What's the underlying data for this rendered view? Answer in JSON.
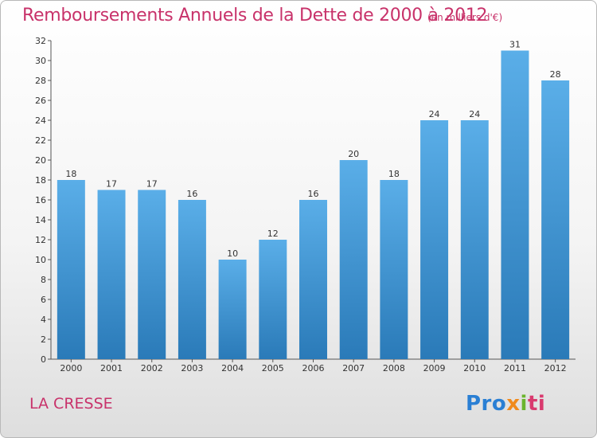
{
  "header": {
    "title": "Remboursements Annuels de la Dette de 2000 à 2012",
    "subtitle": "(en milliers d'€)"
  },
  "footer": {
    "commune": "LA CRESSE",
    "logo_parts": [
      "Pro",
      "x",
      "i",
      "ti"
    ]
  },
  "colors": {
    "title": "#c8326a",
    "bar_top": "#5aaee8",
    "bar_bottom": "#2a7ab8"
  },
  "chart_data": {
    "type": "bar",
    "title": "Remboursements Annuels de la Dette de 2000 à 2012",
    "subtitle": "(en milliers d'€)",
    "categories": [
      "2000",
      "2001",
      "2002",
      "2003",
      "2004",
      "2005",
      "2006",
      "2007",
      "2008",
      "2009",
      "2010",
      "2011",
      "2012"
    ],
    "values": [
      18,
      17,
      17,
      16,
      10,
      12,
      16,
      20,
      18,
      24,
      24,
      31,
      28
    ],
    "ylim": [
      0,
      32
    ],
    "yticks": [
      0,
      2,
      4,
      6,
      8,
      10,
      12,
      14,
      16,
      18,
      20,
      22,
      24,
      26,
      28,
      30,
      32
    ],
    "data_labels": [
      "18",
      "17",
      "17",
      "16",
      "10",
      "12",
      "16",
      "20",
      "18",
      "24",
      "24",
      "31",
      "28"
    ],
    "grid": false,
    "xlabel": "",
    "ylabel": ""
  }
}
